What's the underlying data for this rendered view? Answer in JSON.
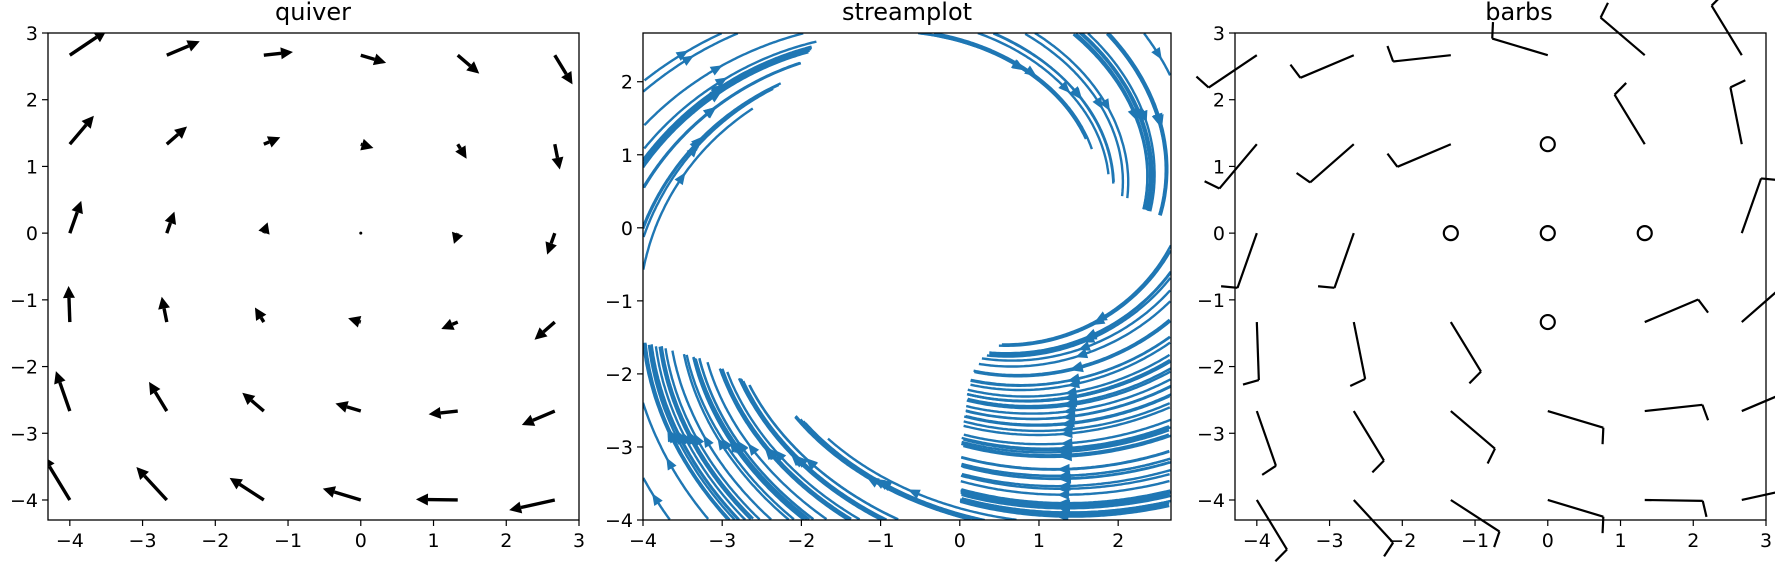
{
  "chart_data": [
    {
      "type": "quiver",
      "title": "quiver",
      "xlim": [
        -4.3,
        3.0
      ],
      "ylim": [
        -4.3,
        3.0
      ],
      "xticks": [
        -4,
        -3,
        -2,
        -1,
        0,
        1,
        2,
        3
      ],
      "yticks": [
        -4,
        -3,
        -2,
        -1,
        0,
        1,
        2,
        3
      ],
      "xticklabels": [
        "−4",
        "−3",
        "−2",
        "−1",
        "0",
        "1",
        "2",
        "3"
      ],
      "yticklabels": [
        "−4",
        "−3",
        "−2",
        "−1",
        "0",
        "1",
        "2",
        "3"
      ],
      "field": "u = y − x·0.3, v = −x·0.85 − y·0.3",
      "grid": [
        -4,
        -2.667,
        -1.333,
        0,
        1.333,
        2.667
      ],
      "color": "#000000"
    },
    {
      "type": "streamplot",
      "title": "streamplot",
      "xlim": [
        -4.0,
        2.667
      ],
      "ylim": [
        -4.0,
        2.667
      ],
      "xticks": [
        -4,
        -3,
        -2,
        -1,
        0,
        1,
        2
      ],
      "yticks": [
        -4,
        -3,
        -2,
        -1,
        0,
        1,
        2
      ],
      "xticklabels": [
        "−4",
        "−3",
        "−2",
        "−1",
        "0",
        "1",
        "2"
      ],
      "yticklabels": [
        "−4",
        "−3",
        "−2",
        "−1",
        "0",
        "1",
        "2"
      ],
      "field": "u = y − x·0.3, v = −x·0.85 − y·0.3",
      "color": "#1f77b4"
    },
    {
      "type": "barbs",
      "title": "barbs",
      "xlim": [
        -4.3,
        3.0
      ],
      "ylim": [
        -4.3,
        3.0
      ],
      "xticks": [
        -4,
        -3,
        -2,
        -1,
        0,
        1,
        2,
        3
      ],
      "yticks": [
        -4,
        -3,
        -2,
        -1,
        0,
        1,
        2,
        3
      ],
      "xticklabels": [
        "−4",
        "−3",
        "−2",
        "−1",
        "0",
        "1",
        "2",
        "3"
      ],
      "yticklabels": [
        "−4",
        "−3",
        "−2",
        "−1",
        "0",
        "1",
        "2",
        "3"
      ],
      "grid": [
        -4,
        -2.667,
        -1.333,
        0,
        1.333,
        2.667
      ],
      "calm_points": [
        [
          -1.333,
          0
        ],
        [
          0,
          0
        ],
        [
          1.333,
          0
        ],
        [
          0,
          1.333
        ],
        [
          0,
          -1.333
        ]
      ],
      "color": "#000000"
    }
  ]
}
